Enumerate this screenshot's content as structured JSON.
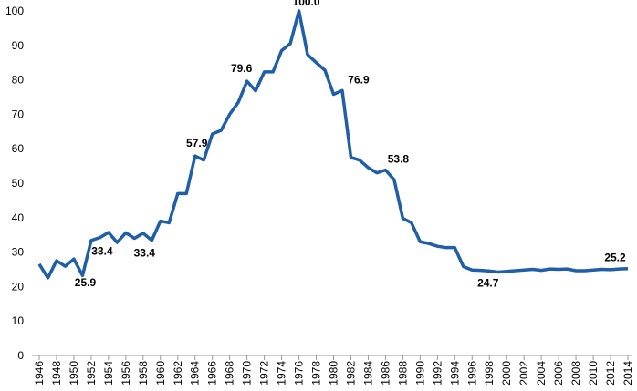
{
  "chart_data": {
    "type": "line",
    "x": [
      1946,
      1947,
      1948,
      1949,
      1950,
      1951,
      1952,
      1953,
      1954,
      1955,
      1956,
      1957,
      1958,
      1959,
      1960,
      1961,
      1962,
      1963,
      1964,
      1965,
      1966,
      1967,
      1968,
      1969,
      1970,
      1971,
      1972,
      1973,
      1974,
      1975,
      1976,
      1977,
      1978,
      1979,
      1980,
      1981,
      1982,
      1983,
      1984,
      1985,
      1986,
      1987,
      1988,
      1989,
      1990,
      1991,
      1992,
      1993,
      1994,
      1995,
      1996,
      1997,
      1998,
      1999,
      2000,
      2001,
      2002,
      2003,
      2004,
      2005,
      2006,
      2007,
      2008,
      2009,
      2010,
      2011,
      2012,
      2013,
      2014
    ],
    "series": [
      {
        "color": "#1f5fa8",
        "values": [
          26.5,
          22.5,
          27.5,
          25.9,
          28,
          23.2,
          33.4,
          34.2,
          35.7,
          32.8,
          35.6,
          34,
          35.5,
          33.4,
          39,
          38.5,
          47,
          47,
          57.9,
          56.7,
          64.3,
          65.3,
          70,
          73.5,
          79.6,
          76.8,
          82.3,
          82.3,
          88.5,
          90.5,
          100,
          87.3,
          85,
          82.8,
          75.8,
          76.9,
          57.5,
          56.7,
          54.5,
          53,
          53.8,
          51,
          39.8,
          38.5,
          33,
          32.5,
          31.7,
          31.3,
          31.3,
          25.8,
          24.8,
          24.7,
          24.5,
          24.2,
          24.4,
          24.6,
          24.8,
          25,
          24.7,
          25.1,
          25,
          25.1,
          24.6,
          24.6,
          24.8,
          25,
          24.9,
          25.1,
          25.2
        ],
        "value_labels": [
          null,
          null,
          null,
          "25.9",
          null,
          null,
          "33.4",
          null,
          null,
          null,
          null,
          null,
          null,
          "33.4",
          null,
          null,
          null,
          null,
          "57.9",
          null,
          null,
          null,
          null,
          null,
          "79.6",
          null,
          null,
          null,
          null,
          null,
          "100.0",
          null,
          null,
          null,
          null,
          "76.9",
          null,
          null,
          null,
          null,
          "53.8",
          null,
          null,
          null,
          null,
          null,
          null,
          null,
          null,
          null,
          null,
          "24.7",
          null,
          null,
          null,
          null,
          null,
          null,
          null,
          null,
          null,
          null,
          null,
          null,
          null,
          null,
          null,
          null,
          "25.2"
        ]
      }
    ],
    "xlim": [
      1946,
      2014
    ],
    "xticks": [
      1946,
      1948,
      1950,
      1952,
      1954,
      1956,
      1958,
      1960,
      1962,
      1964,
      1966,
      1968,
      1970,
      1972,
      1974,
      1976,
      1978,
      1980,
      1982,
      1984,
      1986,
      1988,
      1990,
      1992,
      1994,
      1996,
      1998,
      2000,
      2002,
      2004,
      2006,
      2008,
      2010,
      2012,
      2014
    ],
    "ylim": [
      0,
      100
    ],
    "yticks": [
      0,
      10,
      20,
      30,
      40,
      50,
      60,
      70,
      80,
      90,
      100
    ]
  }
}
